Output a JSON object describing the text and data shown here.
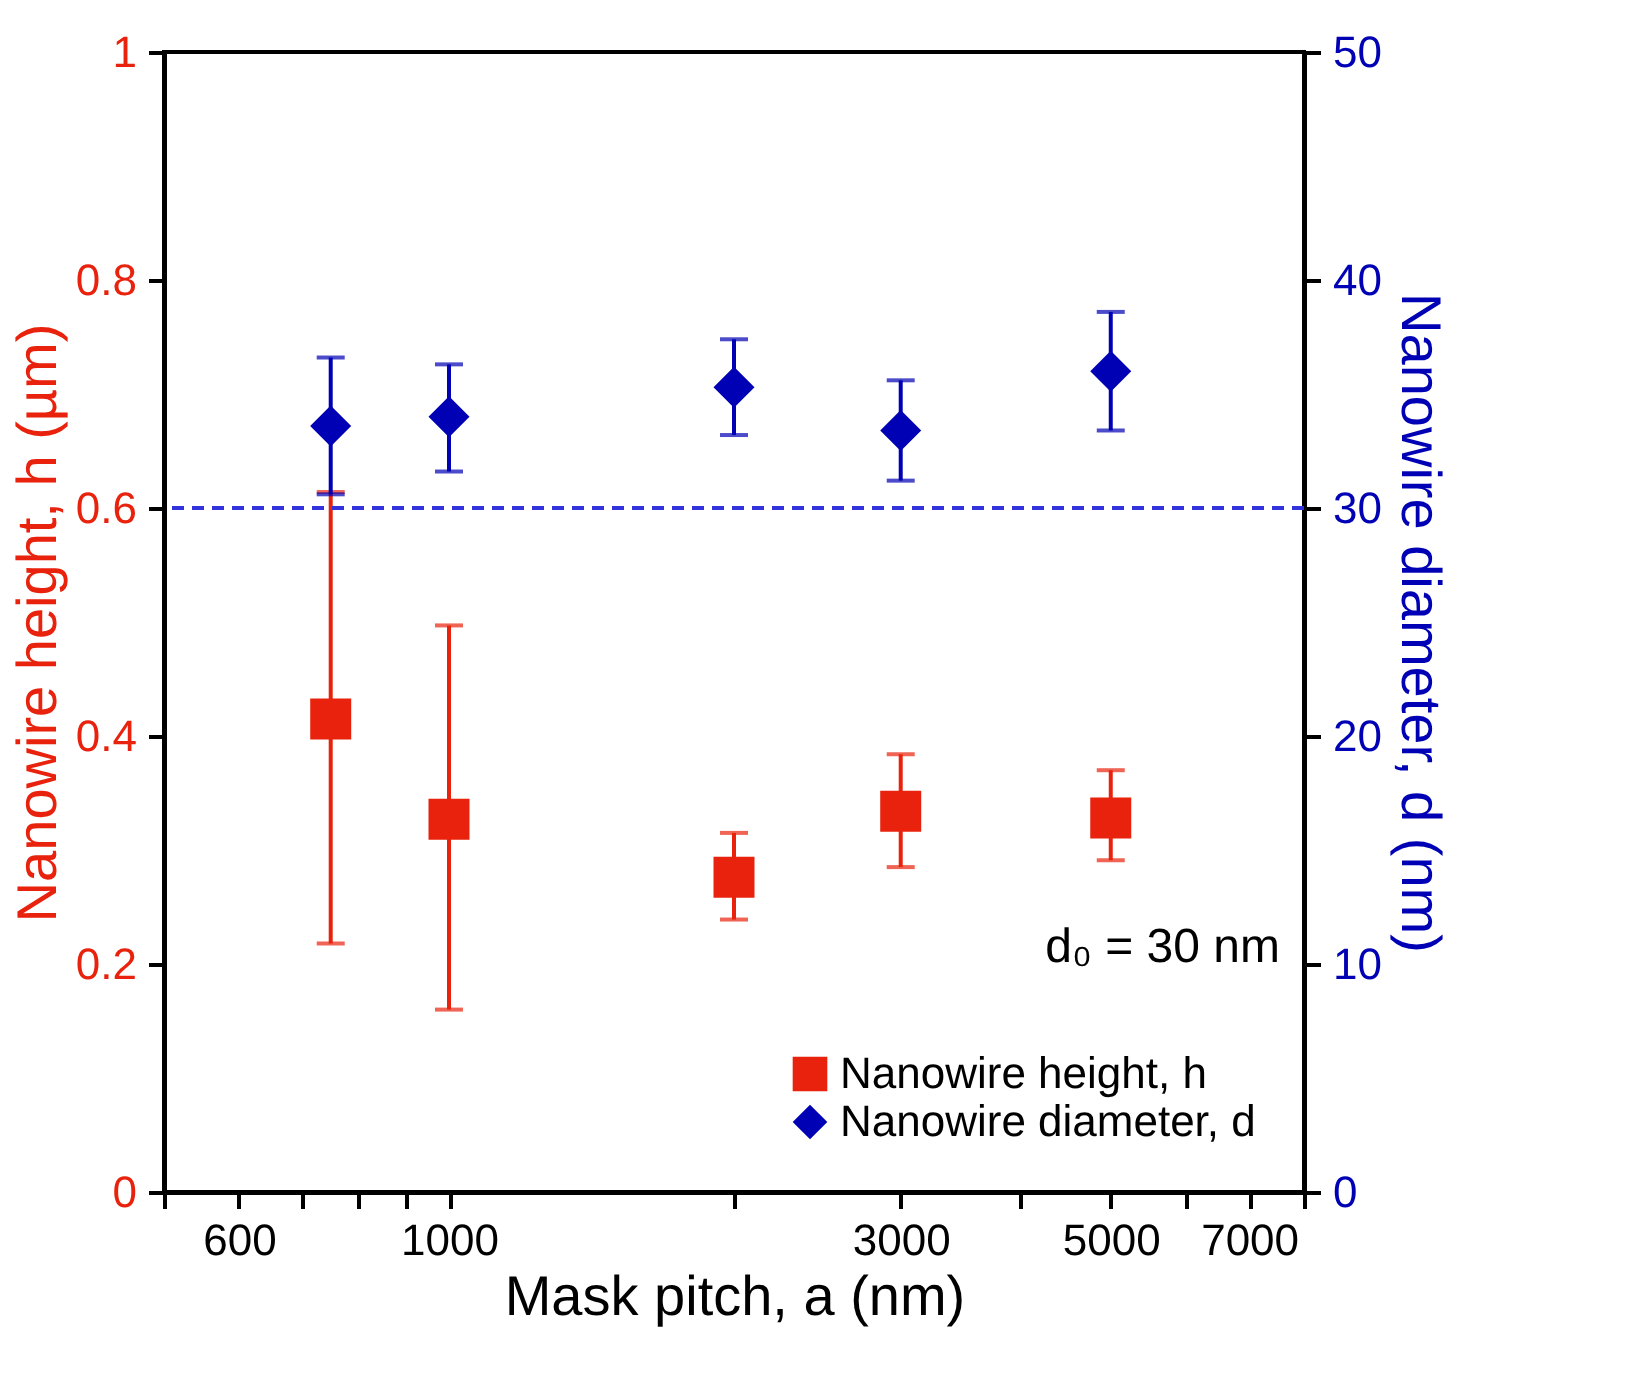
{
  "chart_data": {
    "type": "scatter",
    "xlabel": "Mask pitch, a (nm)",
    "ylabel": "Nanowire height, h (µm)",
    "y2label": "Nanowire diameter, d (nm)",
    "x": [
      750,
      1000,
      2000,
      3000,
      5000
    ],
    "series": [
      {
        "name": "Nanowire height, h",
        "color": "#e8220c",
        "marker": "square",
        "values": [
          0.415,
          0.327,
          0.276,
          0.334,
          0.328
        ],
        "errors": [
          [
            0.218,
            0.614
          ],
          [
            0.16,
            0.497
          ],
          [
            0.239,
            0.315
          ],
          [
            0.285,
            0.384
          ],
          [
            0.291,
            0.37
          ]
        ]
      },
      {
        "name": "Nanowire diameter, d",
        "color": "#0000b4",
        "marker": "diamond",
        "axis": "y2",
        "values": [
          33.6,
          34.0,
          35.3,
          33.4,
          36.0
        ],
        "errors": [
          [
            30.6,
            36.6
          ],
          [
            31.6,
            36.3
          ],
          [
            33.2,
            37.4
          ],
          [
            31.2,
            35.6
          ],
          [
            33.4,
            38.6
          ]
        ]
      }
    ],
    "log": "x",
    "xlim": [
      500,
      8000
    ],
    "xticks": [
      {
        "value": 500,
        "label": null
      },
      600,
      {
        "value": 700,
        "label": null
      },
      {
        "value": 800,
        "label": null
      },
      {
        "value": 900,
        "label": null
      },
      1000,
      {
        "value": 2000,
        "label": null
      },
      3000,
      {
        "value": 4000,
        "label": null
      },
      5000,
      {
        "value": 6000,
        "label": null
      },
      7000,
      {
        "value": 8000,
        "label": null
      }
    ],
    "ylim": [
      0,
      1
    ],
    "yticks": [
      0,
      0.2,
      0.4,
      0.6,
      0.8,
      1
    ],
    "y2lim": [
      0,
      50
    ],
    "y2ticks": [
      0,
      10,
      20,
      30,
      40,
      50
    ],
    "ref_lines": [
      {
        "axis": "y2",
        "value": 30,
        "color": "#3333dd",
        "line_style": "dashed"
      }
    ],
    "annotations": [
      "d₀ = 30 nm"
    ],
    "legend": "bottom right",
    "grid": false
  }
}
